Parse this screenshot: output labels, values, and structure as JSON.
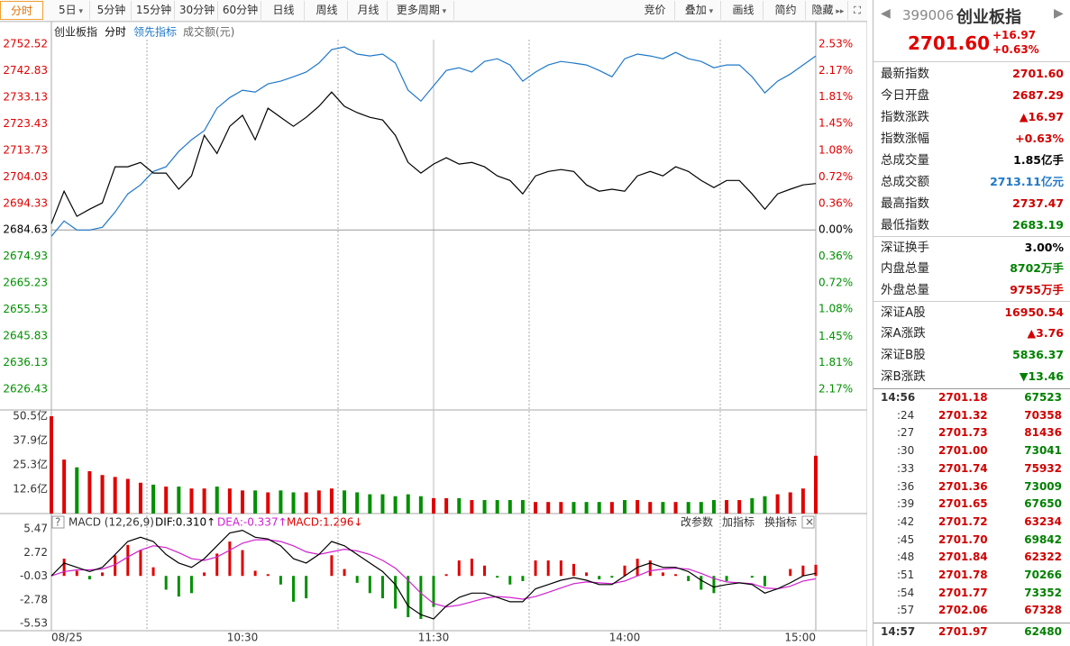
{
  "toolbar": {
    "tabs": [
      "分时",
      "5日",
      "5分钟",
      "15分钟",
      "30分钟",
      "60分钟",
      "日线",
      "周线",
      "月线",
      "更多周期"
    ],
    "right": [
      "竞价",
      "叠加",
      "画线",
      "简约",
      "隐藏"
    ]
  },
  "chart_data": [
    {
      "type": "line",
      "subtitle": "分时",
      "ylim": [
        2626.43,
        2752.52
      ],
      "yticks": [
        2752.52,
        2742.83,
        2733.13,
        2723.43,
        2713.73,
        2704.03,
        2694.33,
        2684.63,
        2674.93,
        2665.23,
        2655.53,
        2645.83,
        2636.13,
        2626.43
      ],
      "y2lim": [
        -2.17,
        2.53
      ],
      "y2ticks": [
        {
          "value": 2.53,
          "label": "2.53%"
        },
        {
          "value": 2.17,
          "label": "2.17%"
        },
        {
          "value": 1.81,
          "label": "1.81%"
        },
        {
          "value": 1.45,
          "label": "1.45%"
        },
        {
          "value": 1.08,
          "label": "1.08%"
        },
        {
          "value": 0.72,
          "label": "0.72%"
        },
        {
          "value": 0.36,
          "label": "0.36%"
        },
        {
          "value": 0,
          "label": "0.00%"
        },
        {
          "value": -0.36,
          "label": "0.36%"
        },
        {
          "value": -0.72,
          "label": "0.72%"
        },
        {
          "value": -1.08,
          "label": "1.08%"
        },
        {
          "value": -1.45,
          "label": "1.45%"
        },
        {
          "value": -1.81,
          "label": "1.81%"
        },
        {
          "value": -2.17,
          "label": "2.17%"
        }
      ],
      "series": [
        {
          "name": "创业板指",
          "color": "#000000",
          "values": [
            2686.9,
            2698.8,
            2689.6,
            2692.2,
            2694.5,
            2707.7,
            2707.7,
            2709.3,
            2705.4,
            2705.4,
            2699.5,
            2704.4,
            2719.2,
            2712.6,
            2722.5,
            2726.5,
            2717.6,
            2729.1,
            2725.8,
            2722.5,
            2725.8,
            2729.8,
            2735.0,
            2729.8,
            2727.5,
            2725.8,
            2724.8,
            2719.2,
            2709.3,
            2705.4,
            2708.7,
            2711.0,
            2708.7,
            2709.3,
            2707.7,
            2704.4,
            2702.7,
            2697.8,
            2704.4,
            2706.0,
            2706.7,
            2706.0,
            2701.1,
            2698.8,
            2699.5,
            2698.8,
            2704.4,
            2706.0,
            2704.4,
            2707.7,
            2706.0,
            2702.7,
            2700.1,
            2702.7,
            2702.7,
            2697.8,
            2692.2,
            2697.8,
            2699.5,
            2701.1,
            2701.6
          ]
        },
        {
          "name": "领先指标",
          "color": "#1f78c8",
          "values": [
            2682.3,
            2687.9,
            2684.6,
            2684.6,
            2685.6,
            2691.2,
            2697.8,
            2701.1,
            2706.0,
            2707.7,
            2713.3,
            2717.6,
            2720.9,
            2729.1,
            2733.0,
            2735.7,
            2735.0,
            2738.0,
            2739.0,
            2740.6,
            2742.3,
            2745.6,
            2750.5,
            2751.5,
            2748.9,
            2748.2,
            2748.9,
            2745.6,
            2735.7,
            2731.7,
            2737.3,
            2742.9,
            2743.9,
            2742.3,
            2746.2,
            2747.2,
            2744.9,
            2739.0,
            2742.3,
            2744.9,
            2746.2,
            2745.6,
            2744.9,
            2742.9,
            2740.6,
            2747.2,
            2748.9,
            2748.2,
            2747.2,
            2749.5,
            2747.2,
            2746.2,
            2743.9,
            2744.9,
            2744.9,
            2740.6,
            2734.7,
            2739.0,
            2741.6,
            2744.9,
            2748.2
          ]
        }
      ],
      "up_color": "#e00000",
      "down_color": "#009000"
    },
    {
      "type": "bar",
      "title": "成交额(元)",
      "ylim": [
        0,
        50.5
      ],
      "yticks": [
        {
          "value": 50.5,
          "label": "50.5亿"
        },
        {
          "value": 37.9,
          "label": "37.9亿"
        },
        {
          "value": 25.3,
          "label": "25.3亿"
        },
        {
          "value": 12.6,
          "label": "12.6亿"
        }
      ],
      "values": [
        50.5,
        28,
        24,
        22,
        20,
        19,
        18,
        16,
        15,
        14,
        14,
        13,
        13,
        14,
        13,
        12,
        12,
        11,
        12,
        11,
        11,
        12,
        13,
        12,
        11,
        10,
        10,
        9,
        10,
        9,
        8,
        8,
        8,
        7,
        7,
        7,
        7,
        7,
        6,
        6,
        6,
        6,
        6,
        6,
        6,
        7,
        7,
        6,
        6,
        6,
        6,
        6,
        7,
        7,
        7,
        8,
        9,
        10,
        11,
        13,
        30
      ],
      "up_color": "#e00000",
      "down_color": "#009000"
    },
    {
      "type": "macd",
      "title": "MACD (12,26,9)",
      "ylim": [
        -5.53,
        5.47
      ],
      "yticks": [
        5.47,
        2.72,
        -0.03,
        -2.78,
        -5.53
      ],
      "categories": [
        "08/25",
        null,
        null,
        null,
        null,
        null,
        null,
        null,
        null,
        null,
        null,
        null,
        null,
        null,
        null,
        "10:30",
        null,
        null,
        null,
        null,
        null,
        null,
        null,
        null,
        null,
        null,
        null,
        null,
        null,
        null,
        "11:30",
        null,
        null,
        null,
        null,
        null,
        null,
        null,
        null,
        null,
        null,
        null,
        null,
        null,
        null,
        "14:00",
        null,
        null,
        null,
        null,
        null,
        null,
        null,
        null,
        null,
        null,
        null,
        null,
        null,
        null,
        "15:00"
      ],
      "series": [
        {
          "name": "DIF:0.310↑",
          "color": "#000000",
          "values": [
            0,
            1.5,
            1.0,
            0.5,
            1.0,
            2.5,
            4.0,
            4.5,
            4.0,
            2.5,
            1.5,
            1.0,
            2.0,
            3.5,
            5.0,
            5.3,
            4.5,
            4.3,
            3.5,
            2.0,
            1.5,
            2.5,
            4.0,
            3.5,
            2.5,
            1.5,
            0.5,
            -1.0,
            -3.5,
            -4.5,
            -5.0,
            -3.5,
            -2.5,
            -2.0,
            -2.0,
            -2.5,
            -3.0,
            -3.0,
            -1.5,
            -1.0,
            -0.5,
            -0.2,
            -0.5,
            -1.0,
            -1.0,
            0,
            1.0,
            1.5,
            1.0,
            1.0,
            0.5,
            -0.5,
            -1.3,
            -1.0,
            -0.8,
            -1.0,
            -2.0,
            -1.5,
            -0.8,
            0,
            0.31
          ]
        },
        {
          "name": "DEA:-0.337↑",
          "color": "#d020d0",
          "values": [
            0,
            0.5,
            0.7,
            0.7,
            0.8,
            1.3,
            2.2,
            3.0,
            3.5,
            3.3,
            2.7,
            2.0,
            1.8,
            2.2,
            3.0,
            3.8,
            4.2,
            4.2,
            4.0,
            3.5,
            2.8,
            2.5,
            2.8,
            3.1,
            2.9,
            2.5,
            1.8,
            0.9,
            -0.5,
            -2.0,
            -3.2,
            -3.6,
            -3.4,
            -3.0,
            -2.6,
            -2.4,
            -2.5,
            -2.7,
            -2.4,
            -1.9,
            -1.4,
            -0.9,
            -0.7,
            -0.8,
            -0.9,
            -0.6,
            0,
            0.6,
            0.8,
            0.9,
            0.8,
            0.3,
            -0.3,
            -0.7,
            -0.8,
            -0.9,
            -1.4,
            -1.5,
            -1.2,
            -0.6,
            -0.337
          ]
        },
        {
          "name": "MACD:1.296↓",
          "color": "#e00000",
          "values": [
            0,
            2.0,
            0.6,
            -0.4,
            0.4,
            2.4,
            3.6,
            3.0,
            1.0,
            -1.6,
            -2.4,
            -2.0,
            0.4,
            2.6,
            4.0,
            3.0,
            0.6,
            0.2,
            -1.0,
            -3.0,
            -2.6,
            0,
            2.4,
            0.8,
            -0.8,
            -2.0,
            -2.6,
            -3.8,
            -4.8,
            -5.0,
            -3.6,
            0.2,
            1.8,
            2.0,
            1.2,
            -0.2,
            -1.0,
            -0.6,
            1.8,
            1.8,
            1.8,
            1.4,
            0.4,
            -0.4,
            -0.2,
            1.2,
            2.0,
            1.8,
            0.4,
            0.2,
            -0.6,
            -1.6,
            -2.0,
            -0.6,
            0,
            -0.2,
            -1.2,
            0,
            0.8,
            1.2,
            1.296
          ]
        }
      ],
      "up_color": "#e00000",
      "down_color": "#009000",
      "actions": [
        "改参数",
        "加指标",
        "换指标"
      ]
    }
  ],
  "quote": {
    "code": "399006",
    "name": "创业板指",
    "price": "2701.60",
    "change": "+16.97",
    "change_pct": "+0.63%"
  },
  "stats": [
    {
      "label": "最新指数",
      "value": "2701.60",
      "color": "#d00000"
    },
    {
      "label": "今日开盘",
      "value": "2687.29",
      "color": "#d00000"
    },
    {
      "label": "指数涨跌",
      "value": "▲16.97",
      "color": "#d00000"
    },
    {
      "label": "指数涨幅",
      "value": "+0.63%",
      "color": "#d00000"
    },
    {
      "label": "总成交量",
      "value": "1.85亿手",
      "color": "#000000"
    },
    {
      "label": "总成交额",
      "value": "2713.11亿元",
      "color": "#1f78c8"
    },
    {
      "label": "最高指数",
      "value": "2737.47",
      "color": "#d00000"
    },
    {
      "label": "最低指数",
      "value": "2683.19",
      "color": "#008000"
    },
    {
      "label": "深证换手",
      "value": "3.00%",
      "color": "#000000"
    },
    {
      "label": "内盘总量",
      "value": "8702万手",
      "color": "#008000"
    },
    {
      "label": "外盘总量",
      "value": "9755万手",
      "color": "#d00000"
    },
    {
      "label": "深证A股",
      "value": "16950.54",
      "color": "#d00000"
    },
    {
      "label": "深A涨跌",
      "value": "▲3.76",
      "color": "#d00000"
    },
    {
      "label": "深证B股",
      "value": "5836.37",
      "color": "#008000"
    },
    {
      "label": "深B涨跌",
      "value": "▼13.46",
      "color": "#008000"
    }
  ],
  "trades": [
    {
      "time": "14:56",
      "price": "2701.18",
      "volume": 67523,
      "color": "#008000"
    },
    {
      "time": ":24",
      "price": "2701.32",
      "volume": 70358,
      "color": "#d00000"
    },
    {
      "time": ":27",
      "price": "2701.73",
      "volume": 81436,
      "color": "#d00000"
    },
    {
      "time": ":30",
      "price": "2701.00",
      "volume": 73041,
      "color": "#008000"
    },
    {
      "time": ":33",
      "price": "2701.74",
      "volume": 75932,
      "color": "#d00000"
    },
    {
      "time": ":36",
      "price": "2701.36",
      "volume": 73009,
      "color": "#008000"
    },
    {
      "time": ":39",
      "price": "2701.65",
      "volume": 67650,
      "color": "#008000"
    },
    {
      "time": ":42",
      "price": "2701.72",
      "volume": 63234,
      "color": "#d00000"
    },
    {
      "time": ":45",
      "price": "2701.70",
      "volume": 69842,
      "color": "#008000"
    },
    {
      "time": ":48",
      "price": "2701.84",
      "volume": 62322,
      "color": "#d00000"
    },
    {
      "time": ":51",
      "price": "2701.78",
      "volume": 70266,
      "color": "#008000"
    },
    {
      "time": ":54",
      "price": "2701.77",
      "volume": 73352,
      "color": "#008000"
    },
    {
      "time": ":57",
      "price": "2702.06",
      "volume": 67328,
      "color": "#d00000"
    },
    {
      "time": "14:57",
      "price": "2701.97",
      "volume": 62480,
      "color": "#008000"
    }
  ]
}
